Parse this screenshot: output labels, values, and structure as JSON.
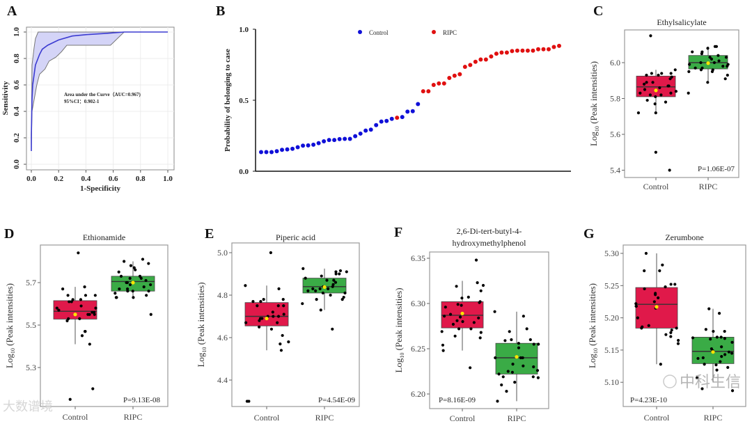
{
  "colors": {
    "control": "#e0194a",
    "ripc": "#3aab46",
    "mean": "#ffe400",
    "roc": "#3b3bd1",
    "roc_ci": "#d4d4f7",
    "b_control": "#1010d8",
    "b_ripc": "#e01010"
  },
  "chart_data": [
    {
      "panel": "A",
      "type": "line",
      "title": "",
      "xlabel": "1-Specificity",
      "ylabel": "Sensitivity",
      "xlim": [
        0,
        1
      ],
      "ylim": [
        0,
        1
      ],
      "grid": true,
      "xticks": [
        "0.0",
        "0.2",
        "0.4",
        "0.6",
        "0.8",
        "1.0"
      ],
      "yticks": [
        "0.0",
        "0.2",
        "0.4",
        "0.6",
        "0.8",
        "1.0"
      ],
      "annotation": [
        "Area under the Curve（AUC=0.967)",
        "95%CI：0.902-1"
      ],
      "curve": [
        [
          0,
          0.1
        ],
        [
          0,
          0.22
        ],
        [
          0.005,
          0.5
        ],
        [
          0.01,
          0.6
        ],
        [
          0.03,
          0.75
        ],
        [
          0.06,
          0.83
        ],
        [
          0.08,
          0.87
        ],
        [
          0.12,
          0.9
        ],
        [
          0.2,
          0.94
        ],
        [
          0.3,
          0.97
        ],
        [
          0.4,
          0.98
        ],
        [
          0.55,
          0.99
        ],
        [
          0.68,
          1
        ],
        [
          1,
          1
        ]
      ],
      "ci_upper": [
        [
          0,
          0.1
        ],
        [
          0.005,
          0.75
        ],
        [
          0.02,
          0.88
        ],
        [
          0.03,
          0.95
        ],
        [
          0.05,
          1
        ],
        [
          1,
          1
        ]
      ],
      "ci_lower": [
        [
          0,
          0.1
        ],
        [
          0.005,
          0.4
        ],
        [
          0.04,
          0.6
        ],
        [
          0.06,
          0.68
        ],
        [
          0.1,
          0.72
        ],
        [
          0.13,
          0.78
        ],
        [
          0.18,
          0.81
        ],
        [
          0.22,
          0.85
        ],
        [
          0.26,
          0.9
        ],
        [
          0.58,
          0.9
        ],
        [
          0.68,
          1
        ],
        [
          1,
          1
        ]
      ]
    },
    {
      "panel": "B",
      "type": "scatter",
      "ylabel": "Probability of belonging to case",
      "ylim": [
        0,
        1
      ],
      "yticks": [
        "0.0",
        "0.5",
        "1.0"
      ],
      "legend_position": "top",
      "legend": [
        "Control",
        "RIPC"
      ],
      "values": [
        0.135,
        0.135,
        0.135,
        0.141,
        0.151,
        0.154,
        0.158,
        0.169,
        0.18,
        0.182,
        0.187,
        0.198,
        0.211,
        0.22,
        0.22,
        0.226,
        0.228,
        0.228,
        0.247,
        0.265,
        0.286,
        0.293,
        0.325,
        0.35,
        0.354,
        0.369,
        0.377,
        0.382,
        0.42,
        0.423,
        0.473,
        0.563,
        0.563,
        0.608,
        0.618,
        0.618,
        0.657,
        0.673,
        0.683,
        0.735,
        0.748,
        0.771,
        0.787,
        0.787,
        0.808,
        0.828,
        0.836,
        0.836,
        0.846,
        0.849,
        0.849,
        0.849,
        0.849,
        0.859,
        0.859,
        0.859,
        0.875,
        0.883
      ],
      "groups": [
        "Control",
        "Control",
        "Control",
        "Control",
        "Control",
        "Control",
        "Control",
        "Control",
        "Control",
        "Control",
        "Control",
        "Control",
        "Control",
        "Control",
        "Control",
        "Control",
        "Control",
        "Control",
        "Control",
        "Control",
        "Control",
        "Control",
        "Control",
        "Control",
        "Control",
        "Control",
        "RIPC",
        "Control",
        "Control",
        "Control",
        "Control",
        "RIPC",
        "RIPC",
        "RIPC",
        "RIPC",
        "RIPC",
        "RIPC",
        "RIPC",
        "RIPC",
        "RIPC",
        "RIPC",
        "RIPC",
        "RIPC",
        "RIPC",
        "RIPC",
        "RIPC",
        "RIPC",
        "RIPC",
        "RIPC",
        "RIPC",
        "RIPC",
        "RIPC",
        "RIPC",
        "RIPC",
        "RIPC",
        "RIPC",
        "RIPC",
        "RIPC"
      ]
    },
    {
      "panel": "C",
      "type": "box",
      "title": "Ethylsalicylate",
      "pvalue": "P=1.06E-07",
      "ylabel_base": "Log",
      "ylabel_sub": "10",
      "ylabel_rest": " (Peak intensities)",
      "categories": [
        "Control",
        "RIPC"
      ],
      "yticks": [
        5.4,
        5.6,
        5.8,
        6.0
      ],
      "ytick_labels": [
        "5.4",
        "5.6",
        "5.8",
        "6.0"
      ],
      "boxes": [
        {
          "q1": 5.81,
          "median": 5.865,
          "q3": 5.925,
          "whisker_low": 5.715,
          "whisker_high": 5.96,
          "mean": 5.845,
          "points": [
            6.15,
            5.94,
            5.94,
            5.93,
            5.92,
            5.96,
            5.89,
            5.89,
            5.88,
            5.87,
            5.87,
            5.86,
            5.85,
            5.84,
            5.83,
            5.83,
            5.82,
            5.82,
            5.81,
            5.79,
            5.78,
            5.77,
            5.72,
            5.72,
            5.5,
            5.4,
            5.94,
            5.91,
            5.93
          ]
        },
        {
          "q1": 5.965,
          "median": 6.0,
          "q3": 6.04,
          "whisker_low": 5.89,
          "whisker_high": 6.09,
          "mean": 5.997,
          "points": [
            6.09,
            6.09,
            6.08,
            6.06,
            6.06,
            6.05,
            6.04,
            6.03,
            6.03,
            6.02,
            6.01,
            6.0,
            6.0,
            5.99,
            5.99,
            5.98,
            5.98,
            5.97,
            5.97,
            5.96,
            5.96,
            5.95,
            5.95,
            5.93,
            5.91,
            5.89,
            5.83
          ]
        }
      ]
    },
    {
      "panel": "D",
      "type": "box",
      "title": "Ethionamide",
      "pvalue": "P=9.13E-08",
      "ylabel_base": "Log",
      "ylabel_sub": "10",
      "ylabel_rest": " (Peak intensities)",
      "categories": [
        "Control",
        "RIPC"
      ],
      "yticks": [
        5.3,
        5.5,
        5.7
      ],
      "ytick_labels": [
        "5.3",
        "5.5",
        "5.7"
      ],
      "boxes": [
        {
          "q1": 5.528,
          "median": 5.565,
          "q3": 5.615,
          "whisker_low": 5.41,
          "whisker_high": 5.68,
          "mean": 5.55,
          "points": [
            5.84,
            5.68,
            5.67,
            5.64,
            5.64,
            5.64,
            5.62,
            5.62,
            5.61,
            5.61,
            5.59,
            5.58,
            5.58,
            5.57,
            5.56,
            5.56,
            5.55,
            5.55,
            5.55,
            5.53,
            5.53,
            5.52,
            5.47,
            5.47,
            5.45,
            5.41,
            5.2,
            5.15
          ]
        },
        {
          "q1": 5.66,
          "median": 5.705,
          "q3": 5.73,
          "whisker_low": 5.625,
          "whisker_high": 5.8,
          "mean": 5.7,
          "points": [
            5.81,
            5.8,
            5.79,
            5.78,
            5.77,
            5.76,
            5.75,
            5.73,
            5.73,
            5.72,
            5.72,
            5.71,
            5.7,
            5.7,
            5.69,
            5.69,
            5.68,
            5.67,
            5.67,
            5.66,
            5.66,
            5.66,
            5.65,
            5.64,
            5.63,
            5.63,
            5.63,
            5.55
          ]
        }
      ]
    },
    {
      "panel": "E",
      "type": "box",
      "title": "Piperic acid",
      "pvalue": "P=4.54E-09",
      "ylabel_base": "Log",
      "ylabel_sub": "10",
      "ylabel_rest": " (Peak intensities)",
      "categories": [
        "Control",
        "RIPC"
      ],
      "yticks": [
        4.4,
        4.6,
        4.8,
        5.0
      ],
      "ytick_labels": [
        "4.4",
        "4.6",
        "4.8",
        "5.0"
      ],
      "boxes": [
        {
          "q1": 4.655,
          "median": 4.7,
          "q3": 4.765,
          "whisker_low": 4.54,
          "whisker_high": 4.845,
          "mean": 4.69,
          "points": [
            5.0,
            4.845,
            4.83,
            4.78,
            4.78,
            4.77,
            4.77,
            4.75,
            4.75,
            4.75,
            4.72,
            4.71,
            4.7,
            4.7,
            4.7,
            4.69,
            4.69,
            4.68,
            4.67,
            4.67,
            4.65,
            4.64,
            4.61,
            4.58,
            4.57,
            4.54,
            4.3,
            4.3
          ]
        },
        {
          "q1": 4.81,
          "median": 4.84,
          "q3": 4.88,
          "whisker_low": 4.73,
          "whisker_high": 4.925,
          "mean": 4.838,
          "points": [
            4.925,
            4.915,
            4.91,
            4.91,
            4.9,
            4.9,
            4.89,
            4.88,
            4.87,
            4.87,
            4.86,
            4.85,
            4.84,
            4.84,
            4.83,
            4.83,
            4.83,
            4.82,
            4.82,
            4.81,
            4.81,
            4.8,
            4.79,
            4.78,
            4.78,
            4.76,
            4.73,
            4.64
          ]
        }
      ]
    },
    {
      "panel": "F",
      "type": "box",
      "title": "2,6-Di-tert-butyl-4-",
      "title_line2": "hydroxymethylphenol",
      "pvalue": "P=8.16E-09",
      "ylabel_base": "Log",
      "ylabel_sub": "10",
      "ylabel_rest": " (Peak intensities)",
      "categories": [
        "Control",
        "RIPC"
      ],
      "yticks": [
        6.2,
        6.25,
        6.3,
        6.35
      ],
      "ytick_labels": [
        "6.20",
        "6.25",
        "6.30",
        "6.35"
      ],
      "boxes": [
        {
          "q1": 6.273,
          "median": 6.287,
          "q3": 6.302,
          "whisker_low": 6.248,
          "whisker_high": 6.325,
          "mean": 6.289,
          "points": [
            6.348,
            6.323,
            6.32,
            6.319,
            6.314,
            6.307,
            6.306,
            6.302,
            6.301,
            6.299,
            6.298,
            6.296,
            6.288,
            6.286,
            6.285,
            6.284,
            6.281,
            6.28,
            6.279,
            6.277,
            6.272,
            6.272,
            6.269,
            6.268,
            6.264,
            6.262,
            6.254,
            6.248,
            6.229
          ]
        },
        {
          "q1": 6.222,
          "median": 6.24,
          "q3": 6.256,
          "whisker_low": 6.192,
          "whisker_high": 6.291,
          "mean": 6.241,
          "points": [
            6.291,
            6.286,
            6.272,
            6.269,
            6.26,
            6.26,
            6.259,
            6.256,
            6.255,
            6.255,
            6.251,
            6.24,
            6.24,
            6.24,
            6.233,
            6.231,
            6.23,
            6.226,
            6.225,
            6.224,
            6.222,
            6.219,
            6.219,
            6.218,
            6.213,
            6.21,
            6.203,
            6.192
          ]
        }
      ]
    },
    {
      "panel": "G",
      "type": "box",
      "title": "Zerumbone",
      "pvalue": "P=4.23E-10",
      "ylabel_base": "Log",
      "ylabel_sub": "10",
      "ylabel_rest": " (Peak intensities)",
      "categories": [
        "Control",
        "RIPC"
      ],
      "yticks": [
        5.1,
        5.15,
        5.2,
        5.25,
        5.3
      ],
      "ytick_labels": [
        "5.10",
        "5.15",
        "5.20",
        "5.25",
        "5.30"
      ],
      "boxes": [
        {
          "q1": 5.184,
          "median": 5.221,
          "q3": 5.247,
          "whisker_low": 5.128,
          "whisker_high": 5.3,
          "mean": 5.217,
          "points": [
            5.3,
            5.282,
            5.273,
            5.273,
            5.252,
            5.252,
            5.248,
            5.245,
            5.238,
            5.236,
            5.231,
            5.225,
            5.222,
            5.218,
            5.218,
            5.215,
            5.2,
            5.188,
            5.186,
            5.184,
            5.184,
            5.181,
            5.177,
            5.174,
            5.171,
            5.165,
            5.16,
            5.128
          ]
        },
        {
          "q1": 5.129,
          "median": 5.148,
          "q3": 5.17,
          "whisker_low": 5.1,
          "whisker_high": 5.214,
          "mean": 5.147,
          "points": [
            5.214,
            5.207,
            5.182,
            5.179,
            5.179,
            5.17,
            5.17,
            5.169,
            5.168,
            5.167,
            5.162,
            5.155,
            5.152,
            5.149,
            5.147,
            5.145,
            5.143,
            5.14,
            5.138,
            5.137,
            5.132,
            5.128,
            5.127,
            5.123,
            5.119,
            5.107,
            5.09,
            5.087
          ]
        }
      ]
    }
  ],
  "watermarks": {
    "left": "大数谱境",
    "right": "中科生信"
  }
}
